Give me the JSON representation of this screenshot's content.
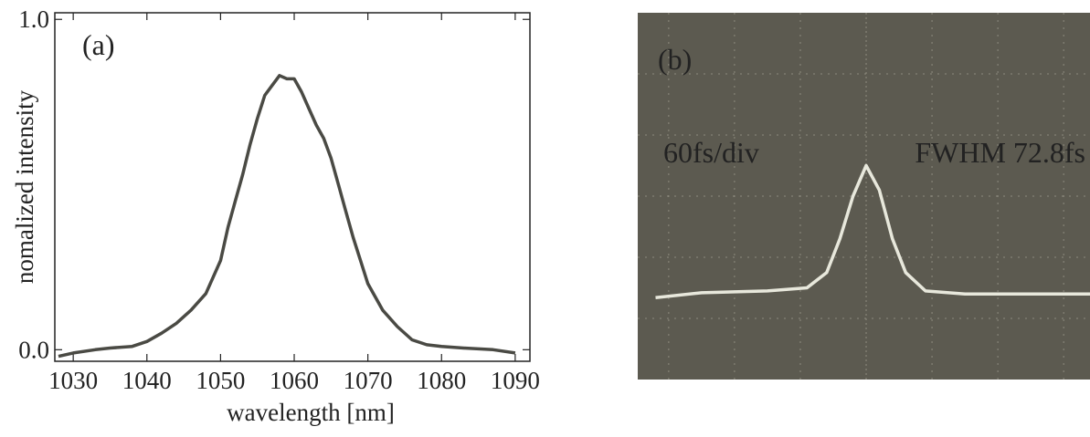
{
  "chart_data": [
    {
      "type": "line",
      "label": "(a)",
      "xlabel": "wavelength [nm]",
      "ylabel": "nomalized intensity",
      "x": [
        1028,
        1030,
        1033,
        1035,
        1038,
        1040,
        1042,
        1044,
        1046,
        1048,
        1050,
        1051,
        1052,
        1053,
        1054,
        1055,
        1056,
        1057,
        1058,
        1059,
        1060,
        1061,
        1062,
        1063,
        1064,
        1065,
        1066,
        1067,
        1068,
        1069,
        1070,
        1072,
        1074,
        1076,
        1078,
        1080,
        1083,
        1087,
        1090
      ],
      "series": [
        {
          "color": "#4a4a44",
          "values": [
            -0.02,
            -0.01,
            0.0,
            0.005,
            0.01,
            0.025,
            0.05,
            0.08,
            0.12,
            0.17,
            0.27,
            0.37,
            0.45,
            0.53,
            0.62,
            0.7,
            0.77,
            0.8,
            0.83,
            0.82,
            0.82,
            0.78,
            0.73,
            0.68,
            0.64,
            0.58,
            0.5,
            0.42,
            0.34,
            0.27,
            0.2,
            0.12,
            0.07,
            0.03,
            0.015,
            0.01,
            0.005,
            0.0,
            -0.01
          ]
        }
      ],
      "xlim": [
        1027.5,
        1092
      ],
      "ylim": [
        -0.035,
        1.02
      ],
      "xticks": [
        1030,
        1040,
        1050,
        1060,
        1070,
        1080,
        1090
      ],
      "yticks": [
        {
          "value": 0,
          "label": "0.0"
        },
        {
          "value": 1,
          "label": "1.0"
        }
      ]
    },
    {
      "type": "scope",
      "label": "(b)",
      "annotations": [
        "60fs/div",
        "FWHM 72.8fs"
      ],
      "x": [
        -3.2,
        -2.5,
        -1.5,
        -0.9,
        -0.6,
        -0.4,
        -0.2,
        0,
        0.2,
        0.4,
        0.6,
        0.9,
        1.5,
        3.4
      ],
      "series": [
        {
          "color": "#e8e8dc",
          "values": [
            1.34,
            1.42,
            1.45,
            1.5,
            1.75,
            2.3,
            3.0,
            3.5,
            3.1,
            2.3,
            1.75,
            1.45,
            1.4,
            1.4
          ]
        }
      ],
      "xlim": [
        -3.47,
        3.4
      ],
      "ylim": [
        0,
        6
      ],
      "grid_x": [
        -3,
        -2,
        -1,
        0,
        1,
        2,
        3
      ],
      "grid_y": [
        1,
        2,
        3,
        4,
        5
      ],
      "background": "#5c5a50"
    }
  ]
}
